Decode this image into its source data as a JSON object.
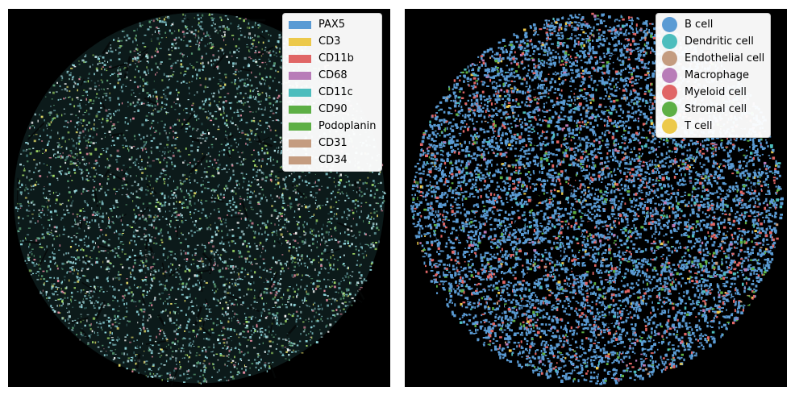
{
  "marker_legend": {
    "items": [
      {
        "label": "PAX5",
        "color": "#5a9bd4"
      },
      {
        "label": "CD3",
        "color": "#ecc94b"
      },
      {
        "label": "CD11b",
        "color": "#e06666"
      },
      {
        "label": "CD68",
        "color": "#b87cb8"
      },
      {
        "label": "CD11c",
        "color": "#4dbdbd"
      },
      {
        "label": "CD90",
        "color": "#5daf45"
      },
      {
        "label": "Podoplanin",
        "color": "#5daf45"
      },
      {
        "label": "CD31",
        "color": "#c49c80"
      },
      {
        "label": "CD34",
        "color": "#c49c80"
      }
    ]
  },
  "celltype_legend": {
    "items": [
      {
        "label": "B cell",
        "color": "#5a9bd4"
      },
      {
        "label": "Dendritic cell",
        "color": "#4dbdbd"
      },
      {
        "label": "Endothelial cell",
        "color": "#c49c80"
      },
      {
        "label": "Macrophage",
        "color": "#b87cb8"
      },
      {
        "label": "Myeloid cell",
        "color": "#e06666"
      },
      {
        "label": "Stromal cell",
        "color": "#5daf45"
      },
      {
        "label": "T cell",
        "color": "#ecc94b"
      }
    ]
  }
}
